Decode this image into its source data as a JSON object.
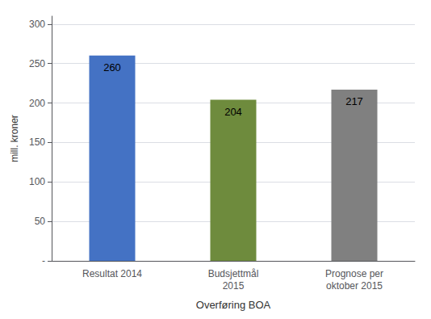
{
  "chart_data": {
    "type": "bar",
    "categories": [
      "Resultat 2014",
      "Budsjettmål\n2015",
      "Prognose per\noktober 2015"
    ],
    "values": [
      260,
      204,
      217
    ],
    "colors": [
      "#4472C4",
      "#6E8B3D",
      "#808080"
    ],
    "data_labels": true,
    "xlabel": "Overføring BOA",
    "ylabel": "mill. kroner",
    "ylim": [
      0,
      310
    ],
    "yticks": [
      {
        "value": 0,
        "label": "-"
      },
      50,
      100,
      150,
      200,
      250,
      300
    ],
    "grid": true
  }
}
